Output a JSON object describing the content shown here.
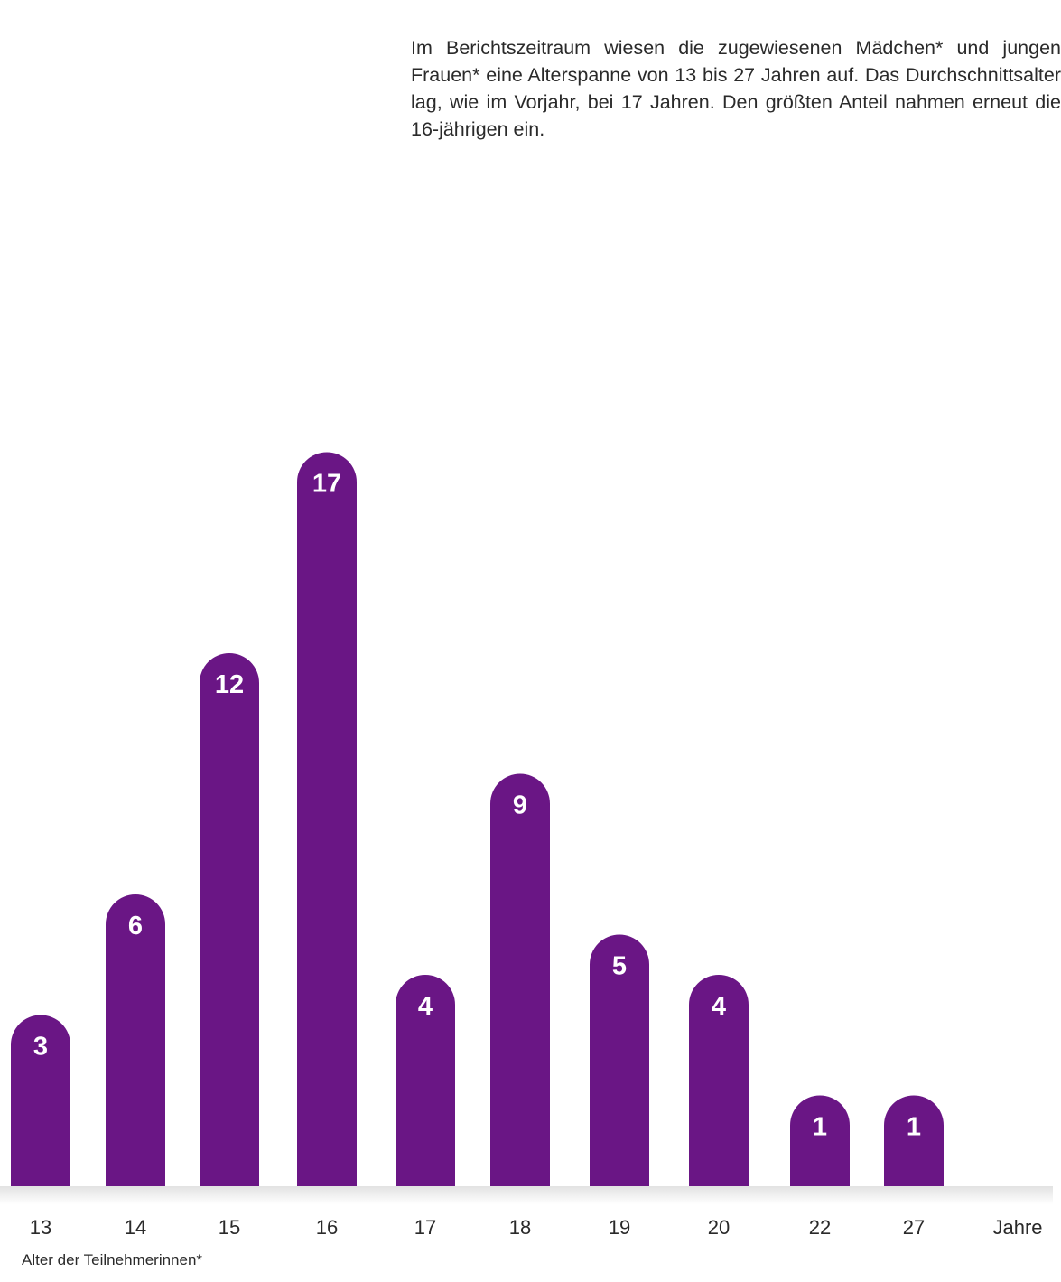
{
  "description": "Im Berichtszeitraum wiesen die zugewiesenen Mädchen* und jungen Frauen* eine Alterspanne von 13 bis 27 Jahren auf. Das Durchschnittsalter lag, wie im Vorjahr, bei 17 Jahren. Den größten Anteil nahmen erneut die 16-jährigen ein.",
  "colors": {
    "bar": "#6a1685",
    "bar_label": "#ffffff",
    "axis_text": "#2a2a2a",
    "baseline_shadow": "#dddddd"
  },
  "chart_data": {
    "type": "bar",
    "categories": [
      "13",
      "14",
      "15",
      "16",
      "17",
      "18",
      "19",
      "20",
      "22",
      "27"
    ],
    "values": [
      3,
      6,
      12,
      17,
      4,
      9,
      5,
      4,
      1,
      1
    ],
    "unit_label": "Jahre",
    "xlabel": "Alter der Teilnehmerinnen*",
    "ylabel": "",
    "data_labels": true,
    "grid": false,
    "legend": "none"
  }
}
